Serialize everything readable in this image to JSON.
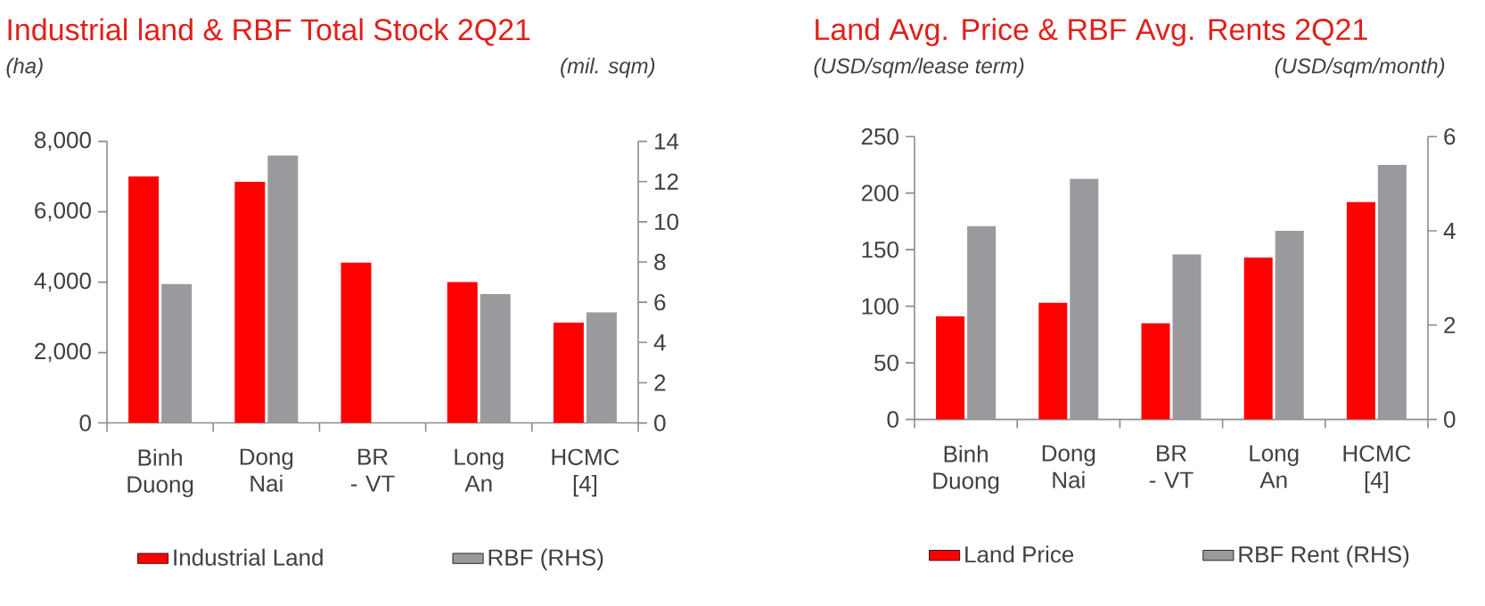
{
  "chart_data": [
    {
      "type": "bar",
      "title": "Industrial land & RBF Total Stock 2Q21",
      "ylabel": "(ha)",
      "y2label": "(mil. sqm)",
      "categories": [
        "Binh Duong",
        "Dong Nai",
        "BR - VT",
        "Long An",
        "HCMC [4]"
      ],
      "series": [
        {
          "name": "Industrial Land",
          "color": "#ff0000",
          "values": [
            7000,
            6850,
            4550,
            4000,
            2850
          ]
        },
        {
          "name": "RBF (RHS)",
          "color": "#9a9a9e",
          "axis": "y2",
          "values": [
            6.9,
            13.3,
            0,
            6.4,
            5.5
          ]
        }
      ],
      "ylim": [
        0,
        8000
      ],
      "yticks": [
        0,
        {
          "value": 2000,
          "label": "2,000"
        },
        {
          "value": 4000,
          "label": "4,000"
        },
        {
          "value": 6000,
          "label": "6,000"
        },
        {
          "value": 8000,
          "label": "8,000"
        }
      ],
      "y2lim": [
        0,
        14
      ],
      "y2ticks": [
        0,
        2,
        4,
        6,
        8,
        10,
        12,
        14
      ],
      "legend": "bottom"
    },
    {
      "type": "bar",
      "title": "Land Avg. Price & RBF Avg. Rents 2Q21",
      "ylabel": "(USD/sqm/lease term)",
      "y2label": "(USD/sqm/month)",
      "categories": [
        "Binh Duong",
        "Dong Nai",
        "BR - VT",
        "Long An",
        "HCMC [4]"
      ],
      "series": [
        {
          "name": "Land Price",
          "color": "#ff0000",
          "values": [
            91,
            103,
            85,
            143,
            192
          ]
        },
        {
          "name": "RBF Rent (RHS)",
          "color": "#9a9a9e",
          "axis": "y2",
          "values": [
            4.1,
            5.1,
            3.5,
            4.0,
            5.4
          ]
        }
      ],
      "ylim": [
        0,
        250
      ],
      "yticks": [
        0,
        50,
        100,
        150,
        200,
        250
      ],
      "y2lim": [
        0,
        6
      ],
      "y2ticks": [
        0,
        2,
        4,
        6
      ],
      "legend": "bottom"
    }
  ]
}
